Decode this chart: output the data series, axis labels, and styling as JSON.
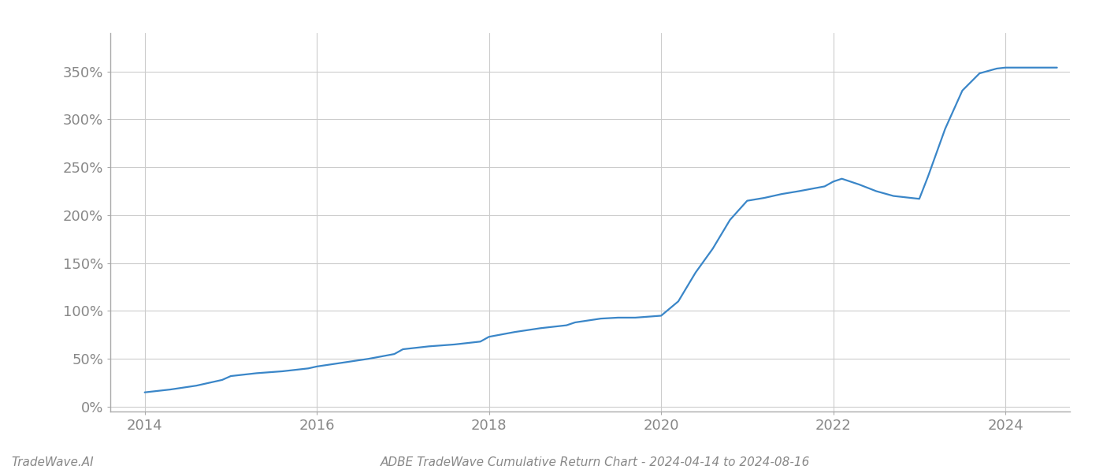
{
  "title": "ADBE TradeWave Cumulative Return Chart - 2024-04-14 to 2024-08-16",
  "watermark": "TradeWave.AI",
  "line_color": "#3a86c8",
  "background_color": "#ffffff",
  "grid_color": "#cccccc",
  "x_values": [
    2014.0,
    2014.3,
    2014.6,
    2014.9,
    2015.0,
    2015.3,
    2015.6,
    2015.9,
    2016.0,
    2016.3,
    2016.6,
    2016.9,
    2017.0,
    2017.3,
    2017.6,
    2017.9,
    2018.0,
    2018.3,
    2018.6,
    2018.9,
    2019.0,
    2019.3,
    2019.5,
    2019.7,
    2020.0,
    2020.2,
    2020.4,
    2020.6,
    2020.8,
    2021.0,
    2021.2,
    2021.4,
    2021.6,
    2021.9,
    2022.0,
    2022.1,
    2022.3,
    2022.5,
    2022.7,
    2022.9,
    2023.0,
    2023.1,
    2023.3,
    2023.5,
    2023.7,
    2023.9,
    2024.0,
    2024.3,
    2024.6
  ],
  "y_values": [
    15,
    18,
    22,
    28,
    32,
    35,
    37,
    40,
    42,
    46,
    50,
    55,
    60,
    63,
    65,
    68,
    73,
    78,
    82,
    85,
    88,
    92,
    93,
    93,
    95,
    110,
    140,
    165,
    195,
    215,
    218,
    222,
    225,
    230,
    235,
    238,
    232,
    225,
    220,
    218,
    217,
    240,
    290,
    330,
    348,
    353,
    354,
    354,
    354
  ],
  "xlim": [
    2013.6,
    2024.75
  ],
  "ylim": [
    -5,
    390
  ],
  "yticks": [
    0,
    50,
    100,
    150,
    200,
    250,
    300,
    350
  ],
  "xticks": [
    2014,
    2016,
    2018,
    2020,
    2022,
    2024
  ],
  "line_width": 1.6,
  "title_fontsize": 11,
  "watermark_fontsize": 11,
  "tick_label_color": "#888888",
  "tick_fontsize": 13,
  "spine_color": "#aaaaaa"
}
